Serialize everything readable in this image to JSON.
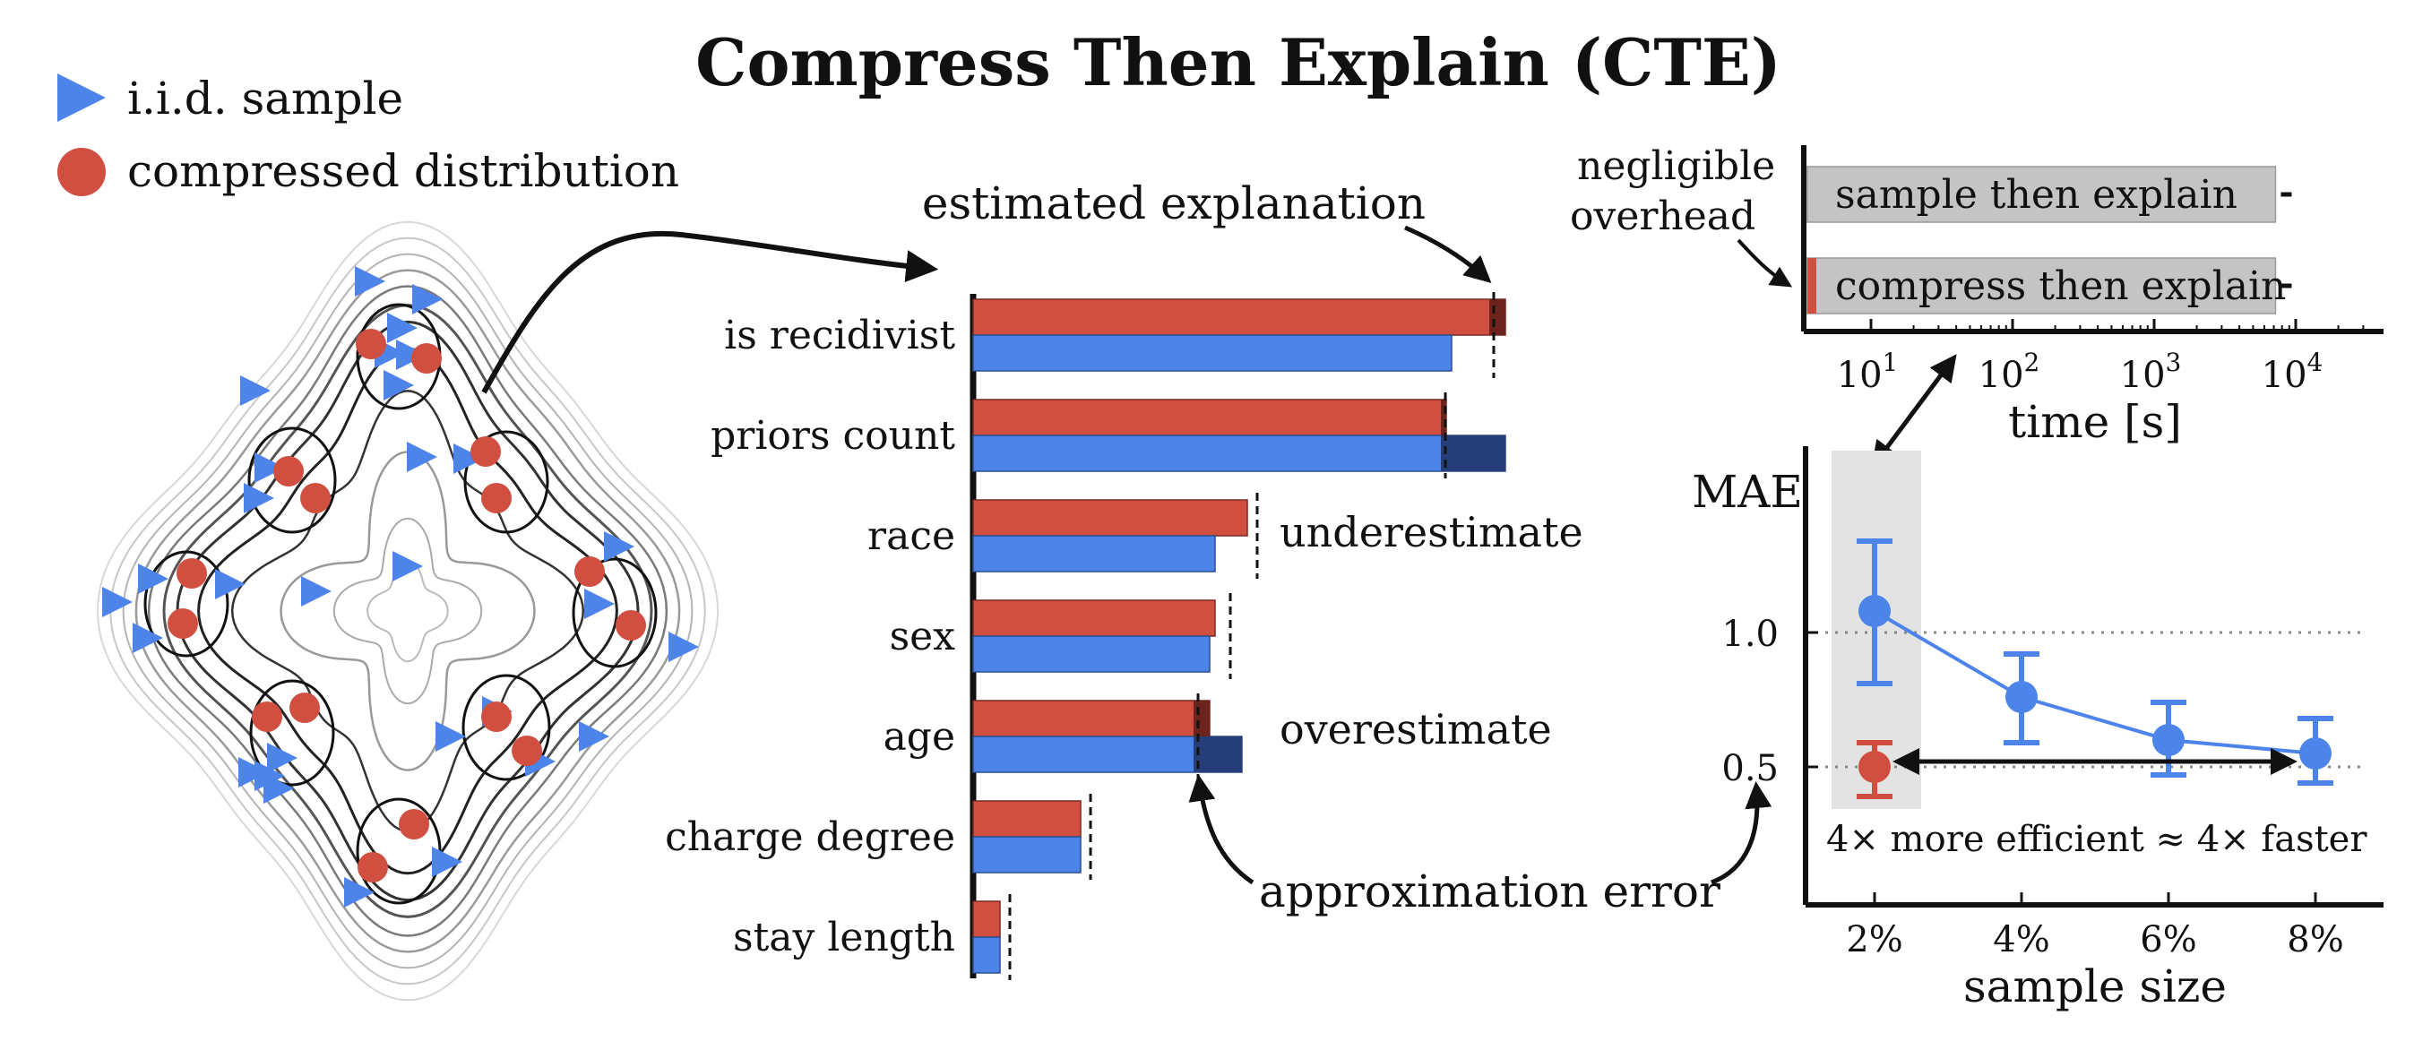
{
  "title": "Compress Then Explain (CTE)",
  "legend": {
    "iid_sample": "i.i.d. sample",
    "compressed": "compressed distribution"
  },
  "colors": {
    "red": "#d14f40",
    "blue": "#4c84ea",
    "grey": "#c4c4c4",
    "shade": "#e3e3e3",
    "dark_red": "#6b231b",
    "dark_blue": "#253e7a"
  },
  "bar_chart": {
    "annotation_top": "estimated explanation",
    "annotation_under": "underestimate",
    "annotation_over": "overestimate",
    "annotation_bottom": "approximation error",
    "categories": [
      "is recidivist",
      "priors count",
      "race",
      "sex",
      "age",
      "charge degree",
      "stay length"
    ],
    "red_values": [
      0.99,
      0.88,
      0.51,
      0.45,
      0.44,
      0.2,
      0.05
    ],
    "blue_values": [
      0.89,
      0.99,
      0.45,
      0.44,
      0.5,
      0.2,
      0.05
    ],
    "true_values": [
      0.96,
      0.87,
      0.52,
      0.47,
      0.41,
      0.21,
      0.06
    ]
  },
  "time_chart": {
    "xlabel": "time [s]",
    "ticks": [
      {
        "base": "10",
        "exp": "1"
      },
      {
        "base": "10",
        "exp": "2"
      },
      {
        "base": "10",
        "exp": "3"
      },
      {
        "base": "10",
        "exp": "4"
      }
    ],
    "bars": [
      {
        "label": "sample then explain",
        "seconds": 7200
      },
      {
        "label": "compress then explain",
        "seconds": 7200,
        "overhead_seconds": 4
      }
    ],
    "note_line1": "negligible",
    "note_line2": "overhead"
  },
  "mae_chart": {
    "ylabel": "MAE",
    "xlabel": "sample size",
    "yticks": [
      "1.0",
      "0.5"
    ],
    "xticks": [
      "2%",
      "4%",
      "6%",
      "8%"
    ],
    "blue_series": [
      {
        "x": 2,
        "y": 1.08,
        "lo": 0.81,
        "hi": 1.34
      },
      {
        "x": 4,
        "y": 0.76,
        "lo": 0.59,
        "hi": 0.92
      },
      {
        "x": 6,
        "y": 0.6,
        "lo": 0.47,
        "hi": 0.74
      },
      {
        "x": 8,
        "y": 0.55,
        "lo": 0.44,
        "hi": 0.68
      }
    ],
    "red_point": {
      "x": 2,
      "y": 0.5,
      "lo": 0.39,
      "hi": 0.59
    },
    "annotation": "4× more efficient ≈ 4× faster"
  }
}
